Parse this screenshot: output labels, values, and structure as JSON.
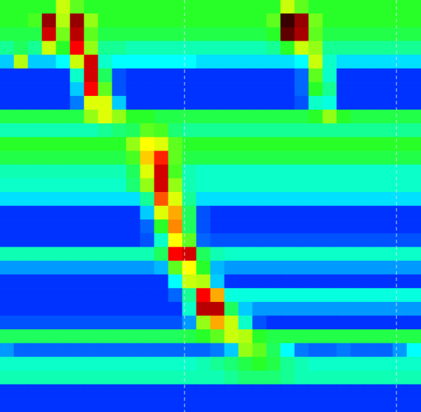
{
  "chart_data": {
    "type": "heatmap",
    "tick_labels": false,
    "grid": false,
    "color_range": [
      0,
      100
    ],
    "vlines": [
      13.15,
      28.25
    ],
    "cells": [
      [
        45,
        45,
        45,
        45,
        60,
        50,
        45,
        45,
        45,
        45,
        45,
        45,
        45,
        45,
        45,
        45,
        45,
        45,
        45,
        45,
        60,
        50,
        45,
        45,
        45,
        45,
        45,
        45,
        45,
        45
      ],
      [
        45,
        45,
        48,
        92,
        58,
        92,
        55,
        45,
        45,
        45,
        45,
        45,
        45,
        45,
        45,
        45,
        45,
        45,
        45,
        50,
        97,
        92,
        52,
        45,
        45,
        45,
        45,
        45,
        45,
        45
      ],
      [
        42,
        42,
        42,
        85,
        52,
        88,
        50,
        42,
        42,
        42,
        42,
        42,
        42,
        42,
        42,
        42,
        42,
        42,
        42,
        45,
        95,
        90,
        50,
        42,
        42,
        42,
        42,
        42,
        42,
        42
      ],
      [
        35,
        40,
        35,
        60,
        45,
        80,
        55,
        35,
        35,
        32,
        32,
        32,
        32,
        32,
        32,
        32,
        32,
        32,
        32,
        35,
        45,
        60,
        55,
        35,
        35,
        35,
        35,
        35,
        35,
        35
      ],
      [
        20,
        58,
        20,
        20,
        25,
        60,
        85,
        30,
        25,
        25,
        25,
        25,
        25,
        25,
        22,
        22,
        22,
        22,
        22,
        22,
        22,
        25,
        60,
        30,
        22,
        22,
        22,
        22,
        22,
        22
      ],
      [
        5,
        5,
        5,
        5,
        5,
        30,
        85,
        40,
        8,
        5,
        5,
        5,
        5,
        5,
        5,
        5,
        5,
        5,
        5,
        5,
        5,
        10,
        50,
        30,
        5,
        5,
        5,
        5,
        5,
        5
      ],
      [
        5,
        5,
        5,
        5,
        5,
        20,
        80,
        50,
        8,
        5,
        5,
        5,
        5,
        5,
        5,
        5,
        5,
        5,
        5,
        5,
        5,
        10,
        45,
        35,
        5,
        5,
        5,
        5,
        5,
        5
      ],
      [
        5,
        5,
        5,
        5,
        5,
        12,
        62,
        62,
        20,
        5,
        5,
        5,
        5,
        5,
        5,
        5,
        5,
        5,
        5,
        5,
        5,
        8,
        30,
        28,
        5,
        5,
        5,
        5,
        5,
        5
      ],
      [
        42,
        42,
        42,
        42,
        42,
        42,
        55,
        62,
        55,
        45,
        45,
        42,
        42,
        42,
        42,
        42,
        42,
        42,
        42,
        42,
        42,
        42,
        45,
        55,
        45,
        42,
        42,
        42,
        42,
        42
      ],
      [
        32,
        32,
        32,
        32,
        32,
        32,
        32,
        35,
        38,
        40,
        50,
        48,
        38,
        35,
        35,
        35,
        35,
        35,
        35,
        35,
        35,
        35,
        35,
        35,
        35,
        35,
        35,
        35,
        35,
        35
      ],
      [
        45,
        45,
        45,
        45,
        45,
        45,
        45,
        45,
        45,
        55,
        65,
        62,
        50,
        45,
        45,
        45,
        45,
        45,
        45,
        45,
        45,
        45,
        45,
        45,
        45,
        45,
        45,
        45,
        45,
        45
      ],
      [
        42,
        42,
        42,
        42,
        42,
        42,
        42,
        42,
        42,
        48,
        68,
        78,
        50,
        42,
        42,
        42,
        42,
        42,
        42,
        42,
        42,
        42,
        42,
        42,
        42,
        42,
        42,
        42,
        42,
        42
      ],
      [
        32,
        32,
        32,
        32,
        32,
        32,
        32,
        32,
        32,
        40,
        62,
        85,
        48,
        32,
        30,
        30,
        30,
        30,
        30,
        30,
        30,
        30,
        30,
        30,
        30,
        30,
        30,
        30,
        30,
        30
      ],
      [
        30,
        30,
        30,
        30,
        30,
        30,
        30,
        30,
        30,
        38,
        55,
        85,
        55,
        32,
        30,
        30,
        30,
        30,
        30,
        30,
        30,
        30,
        30,
        30,
        30,
        30,
        30,
        30,
        30,
        30
      ],
      [
        22,
        22,
        22,
        22,
        22,
        22,
        22,
        22,
        22,
        22,
        35,
        75,
        62,
        35,
        22,
        22,
        22,
        22,
        22,
        22,
        22,
        22,
        22,
        22,
        22,
        22,
        22,
        22,
        22,
        22
      ],
      [
        5,
        5,
        5,
        5,
        5,
        5,
        5,
        5,
        5,
        5,
        20,
        62,
        70,
        40,
        8,
        5,
        5,
        5,
        5,
        5,
        5,
        5,
        5,
        5,
        5,
        5,
        5,
        5,
        5,
        5
      ],
      [
        5,
        5,
        5,
        5,
        5,
        5,
        5,
        5,
        5,
        5,
        10,
        45,
        72,
        40,
        8,
        5,
        5,
        5,
        5,
        5,
        5,
        5,
        5,
        5,
        5,
        5,
        5,
        5,
        5,
        5
      ],
      [
        5,
        5,
        5,
        5,
        5,
        5,
        5,
        5,
        5,
        5,
        8,
        30,
        65,
        50,
        10,
        8,
        8,
        8,
        8,
        8,
        8,
        8,
        8,
        8,
        8,
        8,
        8,
        8,
        8,
        8
      ],
      [
        32,
        32,
        32,
        32,
        32,
        32,
        32,
        32,
        32,
        32,
        32,
        40,
        80,
        85,
        40,
        32,
        30,
        30,
        30,
        30,
        30,
        30,
        30,
        30,
        30,
        30,
        30,
        30,
        30,
        30
      ],
      [
        15,
        15,
        15,
        15,
        15,
        15,
        15,
        15,
        15,
        15,
        15,
        18,
        50,
        65,
        45,
        18,
        15,
        15,
        15,
        15,
        15,
        15,
        15,
        15,
        15,
        15,
        15,
        15,
        15,
        15
      ],
      [
        5,
        5,
        5,
        5,
        5,
        5,
        5,
        5,
        5,
        5,
        5,
        5,
        25,
        60,
        58,
        20,
        5,
        5,
        5,
        5,
        5,
        5,
        5,
        5,
        5,
        5,
        5,
        5,
        5,
        5
      ],
      [
        5,
        5,
        5,
        5,
        5,
        5,
        5,
        5,
        5,
        5,
        5,
        5,
        10,
        35,
        80,
        70,
        28,
        28,
        28,
        28,
        28,
        28,
        28,
        28,
        28,
        28,
        28,
        28,
        28,
        28
      ],
      [
        5,
        5,
        5,
        5,
        5,
        5,
        5,
        5,
        5,
        5,
        5,
        5,
        5,
        30,
        88,
        88,
        40,
        20,
        15,
        15,
        15,
        15,
        15,
        15,
        15,
        15,
        15,
        15,
        15,
        15
      ],
      [
        8,
        8,
        8,
        8,
        8,
        8,
        8,
        8,
        8,
        8,
        8,
        8,
        8,
        15,
        55,
        70,
        60,
        30,
        8,
        5,
        5,
        5,
        5,
        5,
        5,
        5,
        5,
        5,
        5,
        5
      ],
      [
        40,
        40,
        40,
        40,
        40,
        40,
        40,
        40,
        40,
        40,
        40,
        40,
        40,
        42,
        45,
        50,
        60,
        58,
        45,
        42,
        42,
        42,
        42,
        42,
        42,
        42,
        42,
        42,
        42,
        42
      ],
      [
        15,
        10,
        10,
        10,
        10,
        10,
        10,
        10,
        10,
        10,
        10,
        10,
        10,
        10,
        10,
        12,
        20,
        55,
        50,
        40,
        25,
        12,
        10,
        10,
        12,
        10,
        10,
        10,
        15,
        25
      ],
      [
        30,
        30,
        30,
        30,
        30,
        30,
        30,
        30,
        30,
        30,
        30,
        30,
        30,
        30,
        32,
        35,
        38,
        42,
        45,
        42,
        35,
        32,
        30,
        30,
        30,
        30,
        30,
        30,
        30,
        30
      ],
      [
        32,
        32,
        32,
        32,
        32,
        32,
        32,
        32,
        32,
        32,
        32,
        32,
        32,
        32,
        32,
        32,
        35,
        38,
        38,
        38,
        35,
        32,
        32,
        32,
        32,
        32,
        32,
        32,
        32,
        32
      ],
      [
        5,
        5,
        5,
        5,
        5,
        5,
        5,
        5,
        5,
        5,
        5,
        5,
        5,
        5,
        5,
        5,
        5,
        5,
        5,
        5,
        5,
        5,
        5,
        5,
        5,
        5,
        5,
        5,
        5,
        5
      ],
      [
        5,
        5,
        5,
        5,
        5,
        5,
        5,
        5,
        5,
        5,
        5,
        5,
        5,
        5,
        5,
        5,
        5,
        5,
        5,
        5,
        5,
        5,
        5,
        5,
        5,
        5,
        5,
        5,
        5,
        5
      ]
    ]
  }
}
